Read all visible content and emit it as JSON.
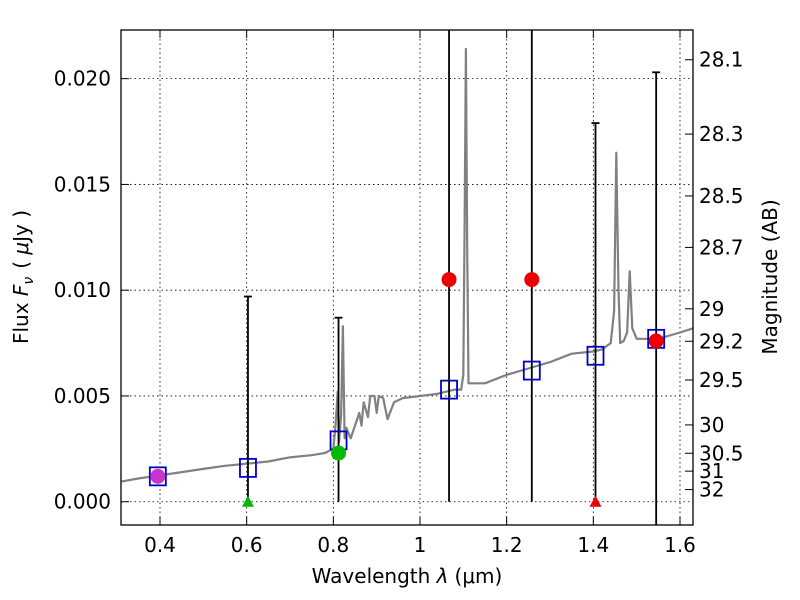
{
  "chart_data": {
    "type": "scatter",
    "xlabel": "Wavelength  λ (μm)",
    "xlabel_parts": {
      "main": "Wavelength  ",
      "symbol": "λ",
      "unit": "(μm)"
    },
    "ylabel": "Flux  Fν  ( μJy )",
    "ylabel_parts": {
      "main": "Flux  ",
      "symbol": "F",
      "sub": "ν",
      "unit_open": "( ",
      "mu": "μ",
      "unit": "Jy )"
    },
    "y2label": "Magnitude (AB)",
    "xlim": [
      0.31,
      1.63
    ],
    "ylim": [
      -0.0011,
      0.0223
    ],
    "grid": true,
    "x_ticks": [
      {
        "value": 0.4,
        "label": "0.4"
      },
      {
        "value": 0.6,
        "label": "0.6"
      },
      {
        "value": 0.8,
        "label": "0.8"
      },
      {
        "value": 1.0,
        "label": "1"
      },
      {
        "value": 1.2,
        "label": "1.2"
      },
      {
        "value": 1.4,
        "label": "1.4"
      },
      {
        "value": 1.6,
        "label": "1.6"
      }
    ],
    "y_ticks": [
      {
        "value": 0.0,
        "label": "0.000"
      },
      {
        "value": 0.005,
        "label": "0.005"
      },
      {
        "value": 0.01,
        "label": "0.010"
      },
      {
        "value": 0.015,
        "label": "0.015"
      },
      {
        "value": 0.02,
        "label": "0.020"
      }
    ],
    "magnitude_ticks": [
      {
        "value": 28.1,
        "label": "28.1"
      },
      {
        "value": 28.3,
        "label": "28.3"
      },
      {
        "value": 28.5,
        "label": "28.5"
      },
      {
        "value": 28.7,
        "label": "28.7"
      },
      {
        "value": 29.0,
        "label": "29"
      },
      {
        "value": 29.2,
        "label": "29.2"
      },
      {
        "value": 29.5,
        "label": "29.5"
      },
      {
        "value": 30.0,
        "label": "30"
      },
      {
        "value": 30.5,
        "label": "30.5"
      },
      {
        "value": 31.0,
        "label": "31"
      },
      {
        "value": 32.0,
        "label": "32"
      }
    ],
    "model_spectrum": {
      "name": "model spectrum",
      "color": "#808080",
      "points": [
        [
          0.31,
          0.00095
        ],
        [
          0.35,
          0.0011
        ],
        [
          0.4,
          0.00125
        ],
        [
          0.45,
          0.0014
        ],
        [
          0.5,
          0.00155
        ],
        [
          0.55,
          0.0017
        ],
        [
          0.6,
          0.0018
        ],
        [
          0.65,
          0.0019
        ],
        [
          0.7,
          0.0021
        ],
        [
          0.75,
          0.0022
        ],
        [
          0.78,
          0.0023
        ],
        [
          0.8,
          0.0025
        ],
        [
          0.805,
          0.0036
        ],
        [
          0.81,
          0.0052
        ],
        [
          0.813,
          0.0028
        ],
        [
          0.818,
          0.0041
        ],
        [
          0.822,
          0.0083
        ],
        [
          0.826,
          0.003
        ],
        [
          0.83,
          0.0035
        ],
        [
          0.84,
          0.003
        ],
        [
          0.85,
          0.0036
        ],
        [
          0.86,
          0.0042
        ],
        [
          0.865,
          0.0036
        ],
        [
          0.87,
          0.0047
        ],
        [
          0.88,
          0.004
        ],
        [
          0.885,
          0.005
        ],
        [
          0.895,
          0.005
        ],
        [
          0.9,
          0.0042
        ],
        [
          0.905,
          0.005
        ],
        [
          0.915,
          0.0049
        ],
        [
          0.925,
          0.0039
        ],
        [
          0.94,
          0.0047
        ],
        [
          0.96,
          0.0049
        ],
        [
          1.0,
          0.005
        ],
        [
          1.04,
          0.0051
        ],
        [
          1.08,
          0.0053
        ],
        [
          1.095,
          0.0053
        ],
        [
          1.1,
          0.006
        ],
        [
          1.103,
          0.013
        ],
        [
          1.106,
          0.0214
        ],
        [
          1.109,
          0.012
        ],
        [
          1.112,
          0.0056
        ],
        [
          1.15,
          0.0056
        ],
        [
          1.2,
          0.006
        ],
        [
          1.25,
          0.0063
        ],
        [
          1.3,
          0.0066
        ],
        [
          1.35,
          0.007
        ],
        [
          1.4,
          0.0071
        ],
        [
          1.42,
          0.0072
        ],
        [
          1.44,
          0.0075
        ],
        [
          1.448,
          0.009
        ],
        [
          1.453,
          0.0165
        ],
        [
          1.458,
          0.01
        ],
        [
          1.462,
          0.0075
        ],
        [
          1.47,
          0.0076
        ],
        [
          1.478,
          0.008
        ],
        [
          1.484,
          0.0109
        ],
        [
          1.49,
          0.0082
        ],
        [
          1.5,
          0.0077
        ],
        [
          1.55,
          0.0077
        ],
        [
          1.6,
          0.008
        ],
        [
          1.63,
          0.0082
        ]
      ]
    },
    "model_photometry": {
      "name": "model photometry",
      "color": "#0000cc",
      "marker": "open-square",
      "points": [
        [
          0.395,
          0.0012
        ],
        [
          0.603,
          0.0016
        ],
        [
          0.812,
          0.0029
        ],
        [
          1.067,
          0.0053
        ],
        [
          1.258,
          0.0062
        ],
        [
          1.405,
          0.0069
        ],
        [
          1.545,
          0.0077
        ]
      ]
    },
    "observed_detections": [
      {
        "x": 0.395,
        "y": 0.0012,
        "color": "#cc33cc"
      },
      {
        "x": 0.812,
        "y": 0.0023,
        "color": "#00bb00"
      },
      {
        "x": 1.067,
        "y": 0.0105,
        "color": "#ee0000"
      },
      {
        "x": 1.258,
        "y": 0.0105,
        "color": "#ee0000"
      },
      {
        "x": 1.545,
        "y": 0.0076,
        "color": "#ee0000"
      }
    ],
    "upper_limits": [
      {
        "x": 0.603,
        "y": 0.0,
        "color": "#00bb00"
      },
      {
        "x": 1.405,
        "y": 0.0,
        "color": "#ee0000"
      }
    ],
    "error_bars": [
      {
        "x": 0.603,
        "low": 0.0,
        "high": 0.0097,
        "cap_top": true
      },
      {
        "x": 0.812,
        "low": 0.0,
        "high": 0.0087,
        "cap_top": true
      },
      {
        "x": 1.067,
        "low": 0.0,
        "high": 0.0223,
        "cap_top": false
      },
      {
        "x": 1.258,
        "low": 0.0,
        "high": 0.0223,
        "cap_top": false
      },
      {
        "x": 1.405,
        "low": 0.0,
        "high": 0.0179,
        "cap_top": true
      },
      {
        "x": 1.545,
        "low": -0.0011,
        "high": 0.0203,
        "cap_top": true
      }
    ]
  }
}
